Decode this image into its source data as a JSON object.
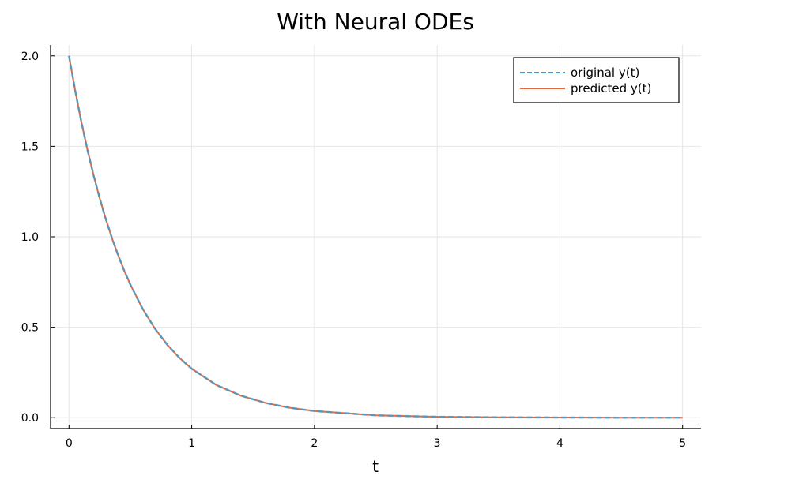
{
  "chart_data": {
    "type": "line",
    "title": "With Neural ODEs",
    "xlabel": "t",
    "ylabel": "",
    "xlim": [
      -0.15,
      5.15
    ],
    "ylim": [
      -0.06,
      2.06
    ],
    "xticks": [
      0,
      1,
      2,
      3,
      4,
      5
    ],
    "xtick_labels": [
      "0",
      "1",
      "2",
      "3",
      "4",
      "5"
    ],
    "yticks": [
      0.0,
      0.5,
      1.0,
      1.5,
      2.0
    ],
    "ytick_labels": [
      "0.0",
      "0.5",
      "1.0",
      "1.5",
      "2.0"
    ],
    "grid": true,
    "legend_position": "top-right",
    "x": [
      0,
      0.05,
      0.1,
      0.15,
      0.2,
      0.25,
      0.3,
      0.35,
      0.4,
      0.45,
      0.5,
      0.6,
      0.7,
      0.8,
      0.9,
      1.0,
      1.2,
      1.4,
      1.6,
      1.8,
      2.0,
      2.5,
      3.0,
      3.5,
      4.0,
      4.5,
      5.0
    ],
    "series": [
      {
        "name": "original y(t)",
        "color": "#3a9fd6",
        "dash": "dashed",
        "values": [
          2.0,
          1.81,
          1.637,
          1.482,
          1.341,
          1.213,
          1.098,
          0.993,
          0.899,
          0.813,
          0.736,
          0.602,
          0.493,
          0.404,
          0.331,
          0.271,
          0.181,
          0.122,
          0.082,
          0.055,
          0.037,
          0.013,
          0.005,
          0.002,
          0.001,
          0.0,
          0.0
        ]
      },
      {
        "name": "predicted y(t)",
        "color": "#e2693d",
        "dash": "solid",
        "values": [
          2.0,
          1.81,
          1.637,
          1.482,
          1.341,
          1.213,
          1.098,
          0.993,
          0.899,
          0.813,
          0.736,
          0.602,
          0.493,
          0.404,
          0.331,
          0.271,
          0.181,
          0.122,
          0.082,
          0.055,
          0.037,
          0.013,
          0.005,
          0.002,
          0.001,
          0.0,
          0.0
        ]
      }
    ]
  }
}
